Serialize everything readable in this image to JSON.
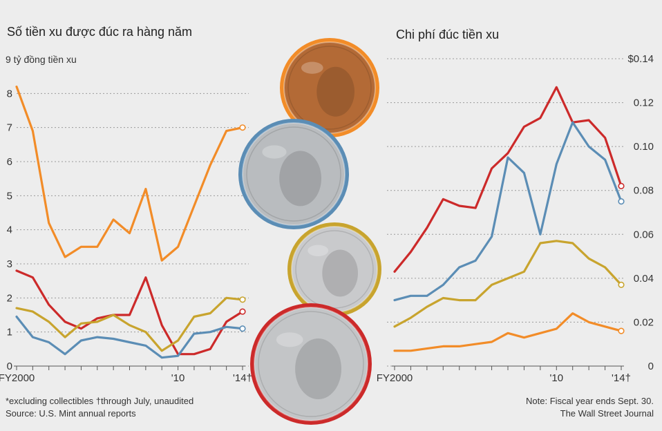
{
  "chart_data": [
    {
      "type": "line",
      "title": "Số tiền xu được đúc ra hàng năm",
      "unit_label": "9 tỷ đồng tiền xu",
      "ylim": [
        0,
        9
      ],
      "y_ticks": [
        "0",
        "1",
        "2",
        "3",
        "4",
        "5",
        "6",
        "7",
        "8"
      ],
      "x_tick_labels": [
        "FY2000",
        "'10",
        "'14†"
      ],
      "x": [
        2000,
        2001,
        2002,
        2003,
        2004,
        2005,
        2006,
        2007,
        2008,
        2009,
        2010,
        2011,
        2012,
        2013,
        2014
      ],
      "grid": true,
      "series": [
        {
          "color": "#f28c28",
          "values": [
            8.2,
            6.9,
            4.2,
            3.2,
            3.5,
            3.5,
            4.3,
            3.9,
            5.2,
            3.1,
            3.5,
            4.7,
            5.9,
            6.9,
            7.0
          ]
        },
        {
          "color": "#cc2a2a",
          "values": [
            2.8,
            2.6,
            1.8,
            1.3,
            1.1,
            1.4,
            1.5,
            1.5,
            2.6,
            1.2,
            0.35,
            0.35,
            0.5,
            1.3,
            1.6
          ]
        },
        {
          "color": "#c8a42e",
          "values": [
            1.7,
            1.6,
            1.3,
            0.85,
            1.25,
            1.3,
            1.5,
            1.2,
            1.0,
            0.45,
            0.75,
            1.45,
            1.55,
            2.0,
            1.95
          ]
        },
        {
          "color": "#5b8db5",
          "values": [
            1.45,
            0.85,
            0.7,
            0.35,
            0.75,
            0.85,
            0.8,
            0.7,
            0.6,
            0.25,
            0.3,
            0.95,
            1.0,
            1.15,
            1.1
          ]
        }
      ]
    },
    {
      "type": "line",
      "title": "Chi phí đúc tiền xu",
      "ylim": [
        0,
        0.14
      ],
      "y_ticks": [
        "0",
        "0.02",
        "0.04",
        "0.06",
        "0.08",
        "0.10",
        "0.12",
        "$0.14"
      ],
      "x_tick_labels": [
        "FY2000",
        "'10",
        "'14†"
      ],
      "x": [
        2000,
        2001,
        2002,
        2003,
        2004,
        2005,
        2006,
        2007,
        2008,
        2009,
        2010,
        2011,
        2012,
        2013,
        2014
      ],
      "grid": true,
      "series": [
        {
          "color": "#cc2a2a",
          "values": [
            0.043,
            0.052,
            0.063,
            0.076,
            0.073,
            0.072,
            0.09,
            0.097,
            0.109,
            0.113,
            0.127,
            0.111,
            0.112,
            0.104,
            0.082
          ]
        },
        {
          "color": "#5b8db5",
          "values": [
            0.03,
            0.032,
            0.032,
            0.037,
            0.045,
            0.048,
            0.059,
            0.095,
            0.088,
            0.06,
            0.092,
            0.111,
            0.1,
            0.094,
            0.075
          ]
        },
        {
          "color": "#c8a42e",
          "values": [
            0.018,
            0.022,
            0.027,
            0.031,
            0.03,
            0.03,
            0.037,
            0.04,
            0.043,
            0.056,
            0.057,
            0.056,
            0.049,
            0.045,
            0.037
          ]
        },
        {
          "color": "#f28c28",
          "values": [
            0.007,
            0.007,
            0.008,
            0.009,
            0.009,
            0.01,
            0.011,
            0.015,
            0.013,
            0.015,
            0.017,
            0.024,
            0.02,
            0.018,
            0.016
          ]
        }
      ]
    }
  ],
  "coins": [
    {
      "name": "penny",
      "ring": "#f28c28",
      "face": "#b36a36"
    },
    {
      "name": "nickel",
      "ring": "#5b8db5",
      "face": "#b9bcbf"
    },
    {
      "name": "dime",
      "ring": "#c8a42e",
      "face": "#c9cacc"
    },
    {
      "name": "quarter",
      "ring": "#cc2a2a",
      "face": "#c3c5c7"
    }
  ],
  "notes": {
    "left_line1": "*excluding collectibles   †through July, unaudited",
    "left_line2": "Source: U.S. Mint annual reports",
    "right_line1": "Note: Fiscal year ends Sept. 30.",
    "right_line2": "The Wall Street Journal"
  }
}
